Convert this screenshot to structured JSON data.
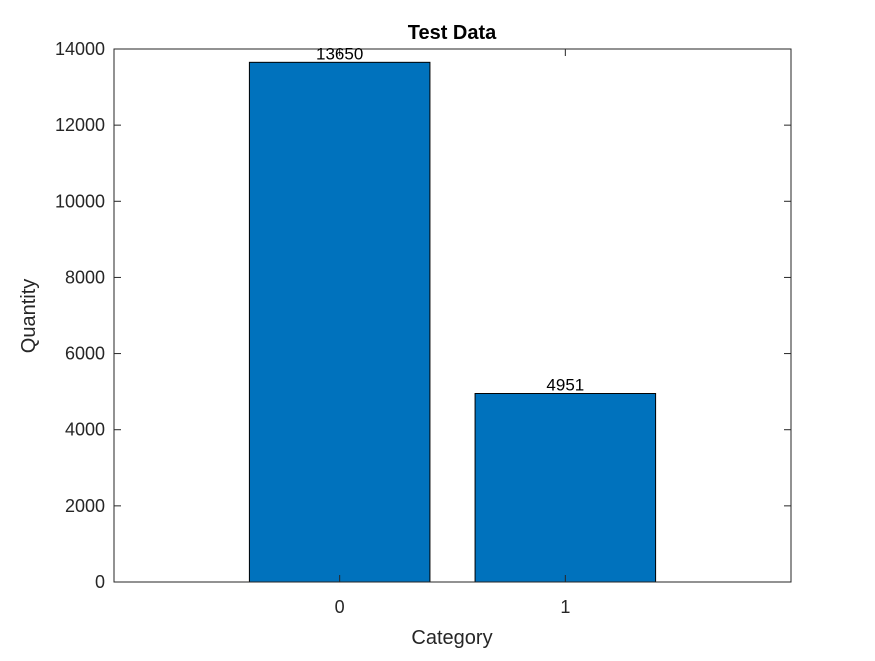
{
  "chart_data": {
    "type": "bar",
    "title": "Test Data",
    "xlabel": "Category",
    "ylabel": "Quantity",
    "categories": [
      "0",
      "1"
    ],
    "values": [
      13650,
      4951
    ],
    "data_labels": [
      "13650",
      "4951"
    ],
    "xlim": [
      -1,
      2
    ],
    "ylim": [
      0,
      14000
    ],
    "yticks": [
      0,
      2000,
      4000,
      6000,
      8000,
      10000,
      12000,
      14000
    ],
    "ytick_labels": [
      "0",
      "2000",
      "4000",
      "6000",
      "8000",
      "10000",
      "12000",
      "14000"
    ],
    "grid": false,
    "legend": "none",
    "bar_color": "#0072BD",
    "bar_edge_color": "#000000"
  }
}
